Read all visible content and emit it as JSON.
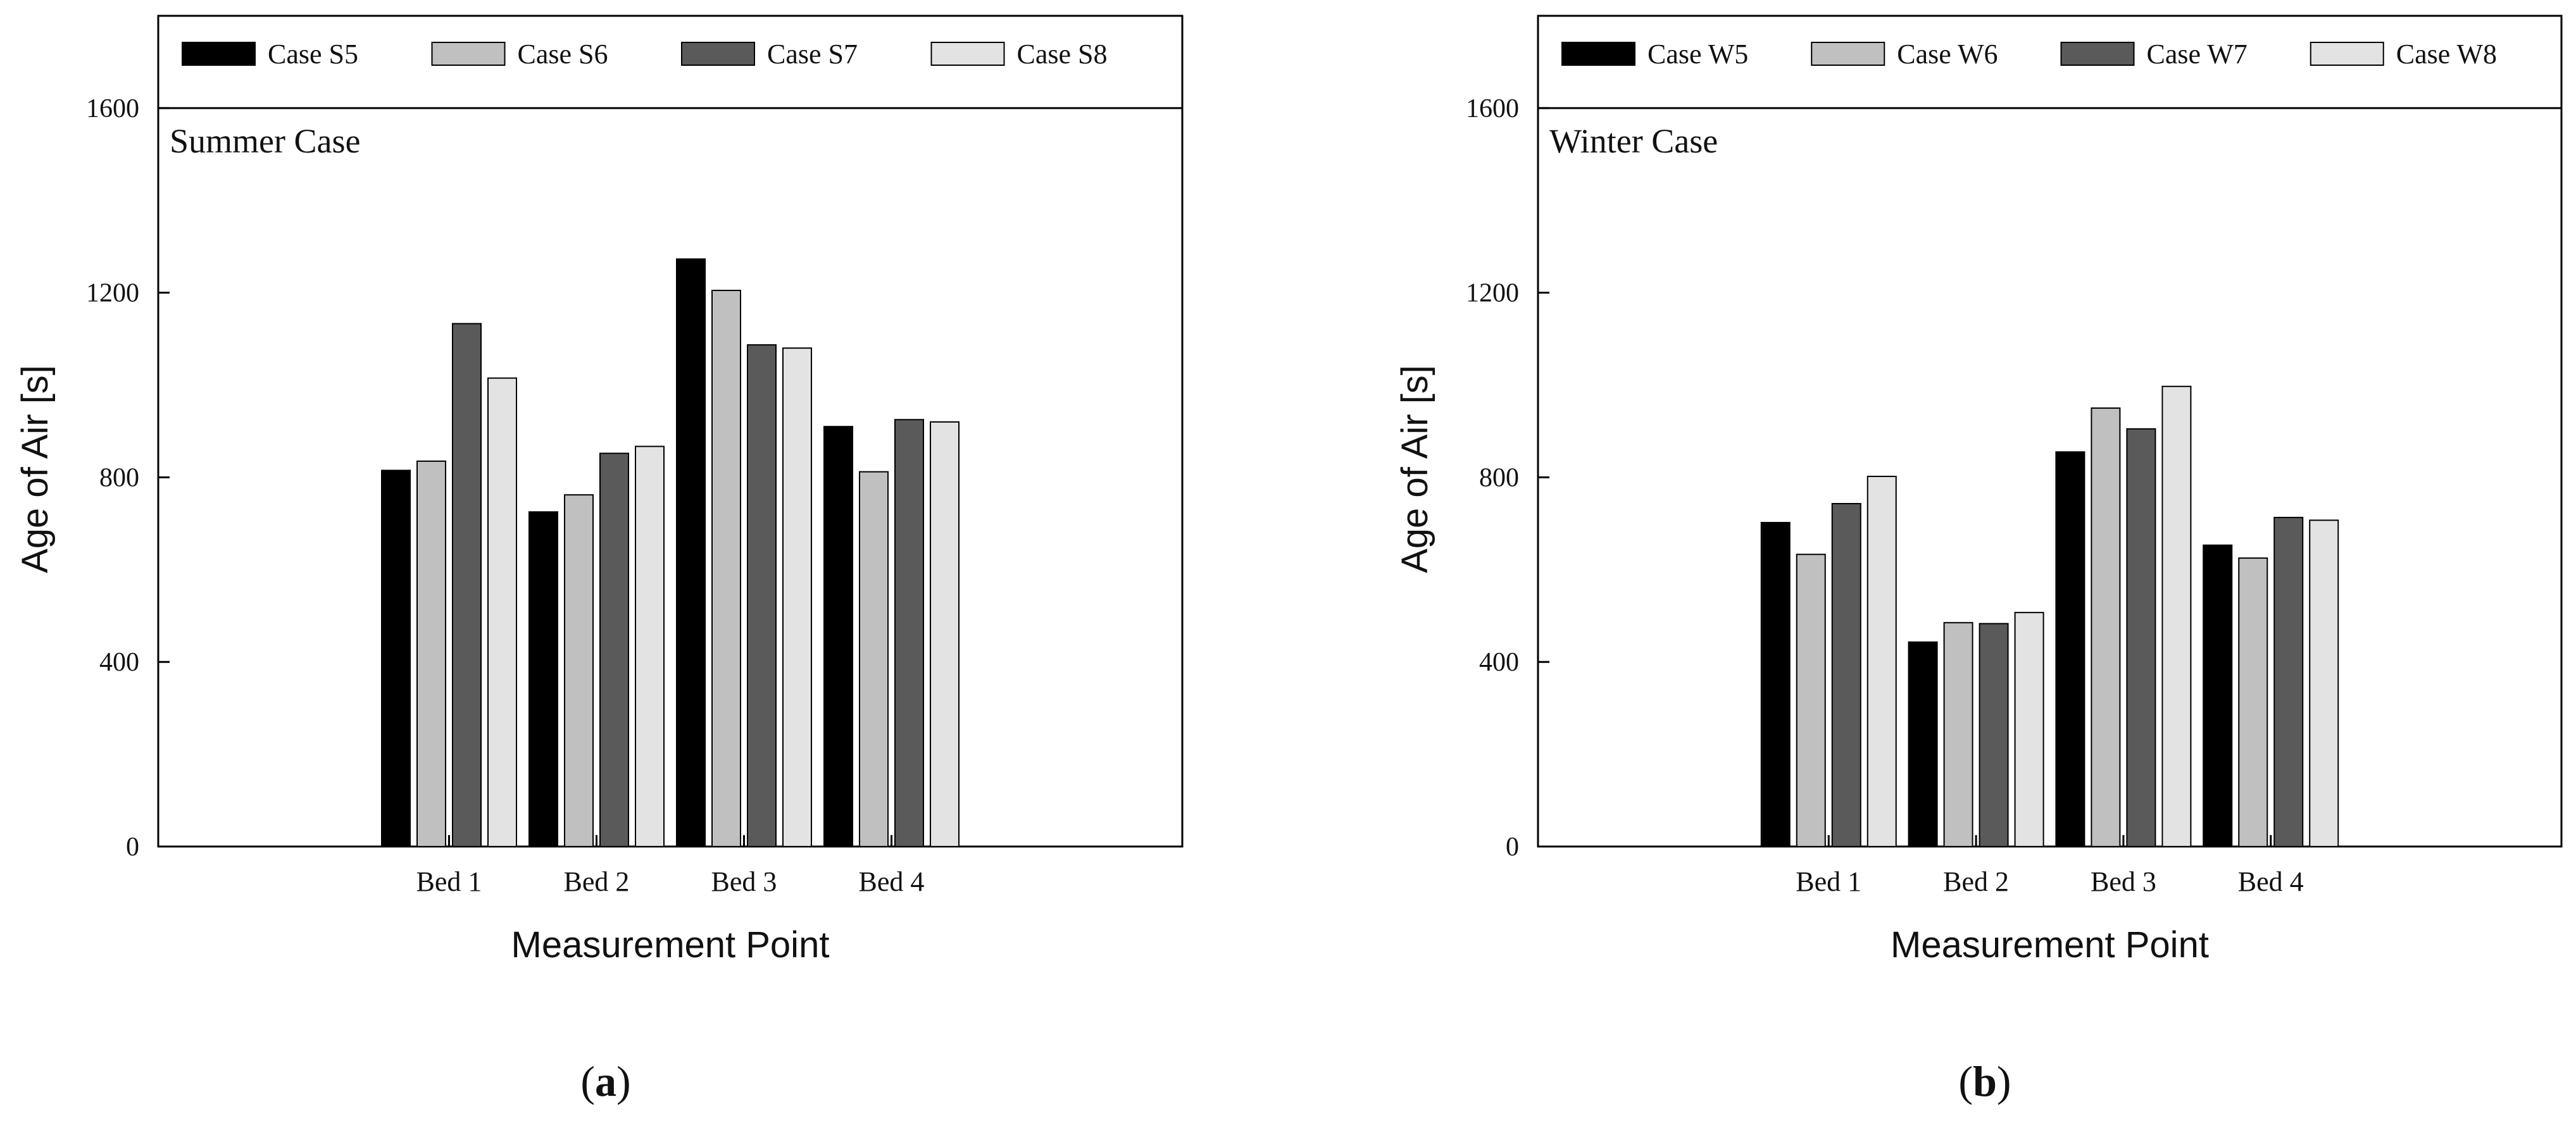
{
  "colors": {
    "axis": "#000000",
    "background": "#ffffff",
    "series": [
      "#000000",
      "#c0c0c0",
      "#5a5a5a",
      "#e3e3e3"
    ]
  },
  "chart_data": [
    {
      "type": "bar",
      "title": "Summer Case",
      "caption_letter": "a",
      "xlabel": "Measurement Point",
      "ylabel": "Age of Air [s]",
      "ylim": [
        0,
        1800
      ],
      "yticks": [
        0,
        400,
        800,
        1200,
        1600
      ],
      "legend_position": "top",
      "grid": false,
      "categories": [
        "Bed 1",
        "Bed 2",
        "Bed 3",
        "Bed 4"
      ],
      "series": [
        {
          "name": "Case S5",
          "values": [
            815,
            725,
            1273,
            910
          ]
        },
        {
          "name": "Case S6",
          "values": [
            835,
            762,
            1205,
            812
          ]
        },
        {
          "name": "Case S7",
          "values": [
            1133,
            852,
            1087,
            925
          ]
        },
        {
          "name": "Case S8",
          "values": [
            1015,
            867,
            1080,
            920
          ]
        }
      ]
    },
    {
      "type": "bar",
      "title": "Winter Case",
      "caption_letter": "b",
      "xlabel": "Measurement Point",
      "ylabel": "Age of Air [s]",
      "ylim": [
        0,
        1800
      ],
      "yticks": [
        0,
        400,
        800,
        1200,
        1600
      ],
      "legend_position": "top",
      "grid": false,
      "categories": [
        "Bed 1",
        "Bed 2",
        "Bed 3",
        "Bed 4"
      ],
      "series": [
        {
          "name": "Case W5",
          "values": [
            702,
            443,
            855,
            653
          ]
        },
        {
          "name": "Case W6",
          "values": [
            633,
            485,
            950,
            625
          ]
        },
        {
          "name": "Case W7",
          "values": [
            743,
            483,
            905,
            713
          ]
        },
        {
          "name": "Case W8",
          "values": [
            802,
            507,
            997,
            707
          ]
        }
      ]
    }
  ]
}
